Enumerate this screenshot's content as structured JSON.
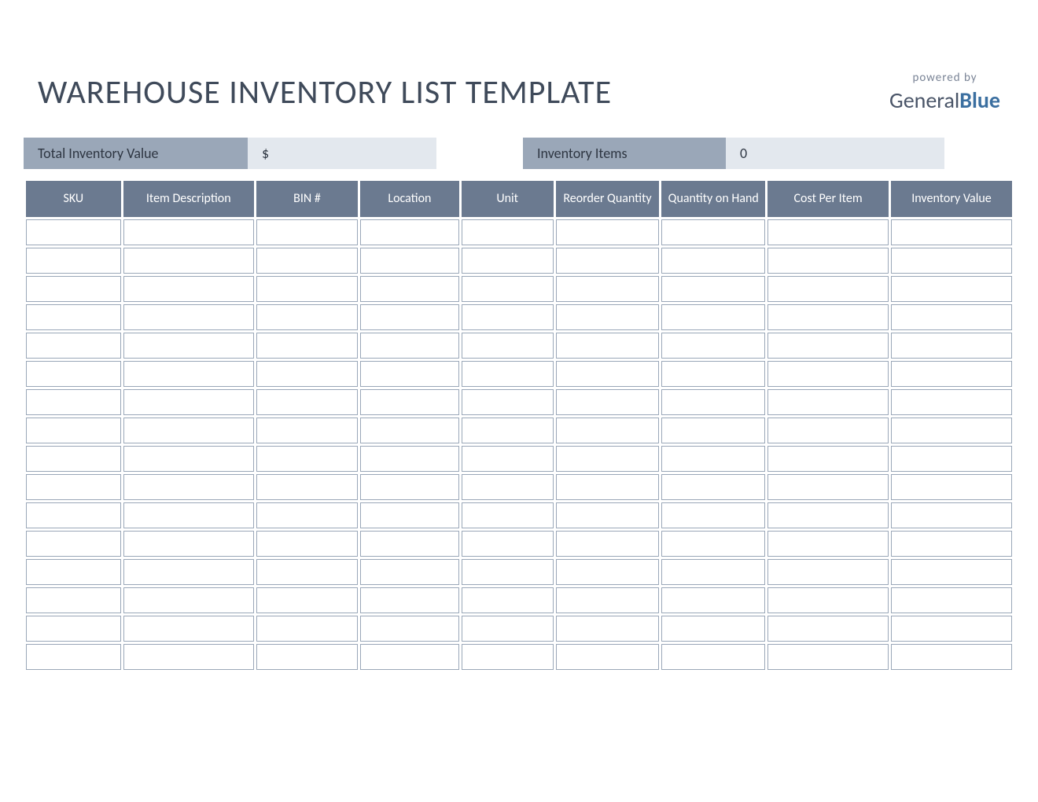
{
  "title": "WAREHOUSE INVENTORY LIST TEMPLATE",
  "branding": {
    "powered_by": "powered by",
    "logo_part1": "General",
    "logo_part2": "Blue",
    "color_part1": "#4a5568",
    "color_part2": "#3b6fa0"
  },
  "summary": {
    "total_inventory_label": "Total Inventory Value",
    "total_inventory_value": "$",
    "inventory_items_label": "Inventory Items",
    "inventory_items_value": "0",
    "label_bg": "#9aa7b8",
    "value_bg": "#e3e8ee",
    "text_color": "#2e3642"
  },
  "table": {
    "columns": [
      "SKU",
      "Item Description",
      "BIN #",
      "Location",
      "Unit",
      "Reorder Quantity",
      "Quantity on Hand",
      "Cost Per Item",
      "Inventory Value"
    ],
    "column_widths_pct": [
      9.8,
      13.5,
      10.5,
      10.2,
      9.5,
      10.7,
      10.7,
      12.5,
      12.5
    ],
    "header_bg": "#6b7a90",
    "header_text_color": "#ffffff",
    "cell_border_color": "#9aa7b8",
    "cell_bg": "#ffffff",
    "row_count": 16,
    "rows": [
      [
        "",
        "",
        "",
        "",
        "",
        "",
        "",
        "",
        ""
      ],
      [
        "",
        "",
        "",
        "",
        "",
        "",
        "",
        "",
        ""
      ],
      [
        "",
        "",
        "",
        "",
        "",
        "",
        "",
        "",
        ""
      ],
      [
        "",
        "",
        "",
        "",
        "",
        "",
        "",
        "",
        ""
      ],
      [
        "",
        "",
        "",
        "",
        "",
        "",
        "",
        "",
        ""
      ],
      [
        "",
        "",
        "",
        "",
        "",
        "",
        "",
        "",
        ""
      ],
      [
        "",
        "",
        "",
        "",
        "",
        "",
        "",
        "",
        ""
      ],
      [
        "",
        "",
        "",
        "",
        "",
        "",
        "",
        "",
        ""
      ],
      [
        "",
        "",
        "",
        "",
        "",
        "",
        "",
        "",
        ""
      ],
      [
        "",
        "",
        "",
        "",
        "",
        "",
        "",
        "",
        ""
      ],
      [
        "",
        "",
        "",
        "",
        "",
        "",
        "",
        "",
        ""
      ],
      [
        "",
        "",
        "",
        "",
        "",
        "",
        "",
        "",
        ""
      ],
      [
        "",
        "",
        "",
        "",
        "",
        "",
        "",
        "",
        ""
      ],
      [
        "",
        "",
        "",
        "",
        "",
        "",
        "",
        "",
        ""
      ],
      [
        "",
        "",
        "",
        "",
        "",
        "",
        "",
        "",
        ""
      ],
      [
        "",
        "",
        "",
        "",
        "",
        "",
        "",
        "",
        ""
      ]
    ]
  },
  "styling": {
    "page_bg": "#ffffff",
    "title_color": "#3f4a5a",
    "title_fontsize": 42,
    "font_family": "Segoe UI, Calibri, Arial, sans-serif"
  }
}
